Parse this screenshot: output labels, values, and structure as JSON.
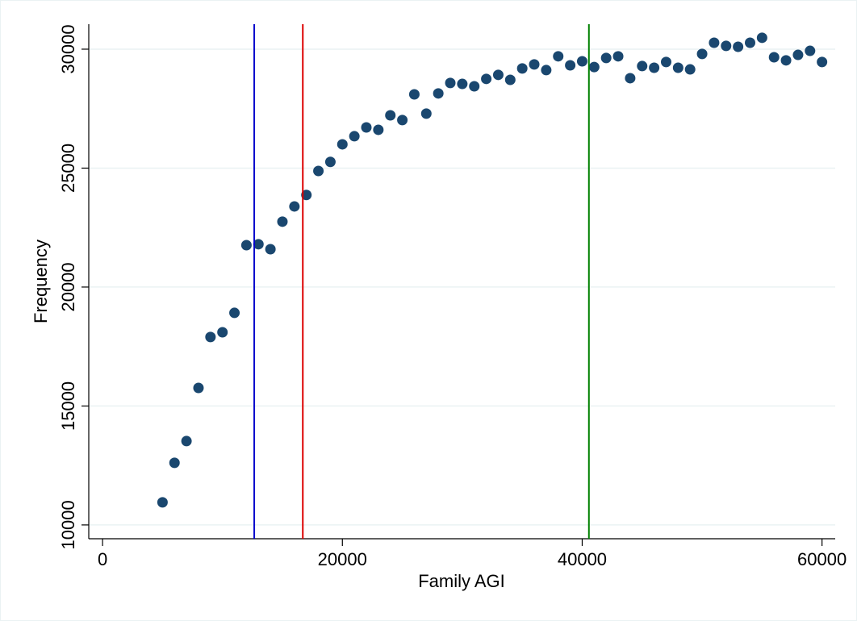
{
  "chart_data": {
    "type": "scatter",
    "x_label": "Family AGI",
    "y_label": "Frequency",
    "x": [
      5000,
      6000,
      7000,
      8000,
      9000,
      10000,
      11000,
      12000,
      13000,
      14000,
      15000,
      16000,
      17000,
      18000,
      19000,
      20000,
      21000,
      22000,
      23000,
      24000,
      25000,
      26000,
      27000,
      28000,
      29000,
      30000,
      31000,
      32000,
      33000,
      34000,
      35000,
      36000,
      37000,
      38000,
      39000,
      40000,
      41000,
      42000,
      43000,
      44000,
      45000,
      46000,
      47000,
      48000,
      49000,
      50000,
      51000,
      52000,
      53000,
      54000,
      55000,
      56000,
      57000,
      58000,
      59000,
      60000
    ],
    "values": [
      10950,
      12610,
      13525,
      15760,
      17900,
      18100,
      18915,
      21760,
      21800,
      21590,
      22750,
      23390,
      23870,
      24880,
      25260,
      26000,
      26340,
      26710,
      26610,
      27220,
      27020,
      28100,
      27290,
      28140,
      28580,
      28540,
      28440,
      28750,
      28920,
      28710,
      29190,
      29360,
      29120,
      29700,
      29320,
      29490,
      29250,
      29630,
      29700,
      28780,
      29290,
      29220,
      29460,
      29220,
      29150,
      29800,
      30270,
      30140,
      30100,
      30270,
      30480,
      29660,
      29530,
      29760,
      29930,
      29460
    ],
    "color": "#1a476f",
    "vlines": [
      {
        "x": 12650,
        "color": "#0000cc"
      },
      {
        "x": 16700,
        "color": "#dd0000"
      },
      {
        "x": 40560,
        "color": "#008000"
      }
    ],
    "xlim": [
      -1150,
      61100
    ],
    "ylim": [
      9420,
      31050
    ],
    "xticks": [
      0,
      20000,
      40000,
      60000
    ],
    "yticks": [
      10000,
      15000,
      20000,
      25000,
      30000
    ],
    "grid": true,
    "grid_color": "#eaf2f3"
  }
}
